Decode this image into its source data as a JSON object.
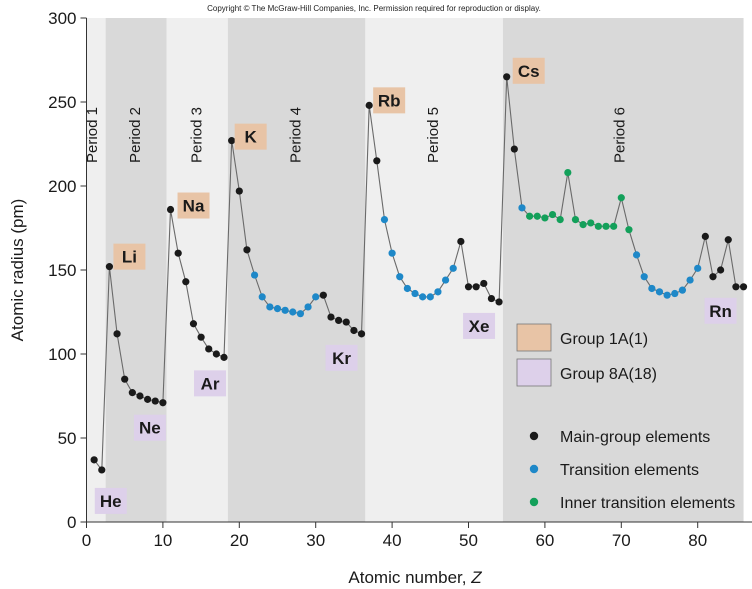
{
  "copyright": "Copyright © The McGraw-Hill Companies, Inc. Permission required for reproduction or display.",
  "colors": {
    "main_group": "#1a1a1a",
    "transition": "#1e88c8",
    "inner_transition": "#13a05a",
    "group_1a_box": "#e8c4a6",
    "group_8a_box": "#ddd0ea",
    "band_dark": "#d9d9d9",
    "band_light": "#efefef",
    "line": "#6a6a6a"
  },
  "chart_data": {
    "type": "line",
    "xlabel": "Atomic number, ",
    "xlabel_italic": "Z",
    "ylabel": "Atomic radius (pm)",
    "xlim": [
      0,
      86
    ],
    "ylim": [
      0,
      300
    ],
    "x_ticks": [
      0,
      10,
      20,
      30,
      40,
      50,
      60,
      70,
      80
    ],
    "y_ticks": [
      0,
      50,
      100,
      150,
      200,
      250,
      300
    ],
    "periods": [
      {
        "label": "Period 1",
        "z_range": [
          0,
          2.5
        ],
        "shade": "light"
      },
      {
        "label": "Period 2",
        "z_range": [
          2.5,
          10.5
        ],
        "shade": "dark"
      },
      {
        "label": "Period 3",
        "z_range": [
          10.5,
          18.5
        ],
        "shade": "light"
      },
      {
        "label": "Period 4",
        "z_range": [
          18.5,
          36.5
        ],
        "shade": "dark"
      },
      {
        "label": "Period 5",
        "z_range": [
          36.5,
          54.5
        ],
        "shade": "light"
      },
      {
        "label": "Period 6",
        "z_range": [
          54.5,
          86
        ],
        "shade": "dark"
      }
    ],
    "points": [
      [
        1,
        37,
        "m"
      ],
      [
        2,
        31,
        "m"
      ],
      [
        3,
        152,
        "m"
      ],
      [
        4,
        112,
        "m"
      ],
      [
        5,
        85,
        "m"
      ],
      [
        6,
        77,
        "m"
      ],
      [
        7,
        75,
        "m"
      ],
      [
        8,
        73,
        "m"
      ],
      [
        9,
        72,
        "m"
      ],
      [
        10,
        71,
        "m"
      ],
      [
        11,
        186,
        "m"
      ],
      [
        12,
        160,
        "m"
      ],
      [
        13,
        143,
        "m"
      ],
      [
        14,
        118,
        "m"
      ],
      [
        15,
        110,
        "m"
      ],
      [
        16,
        103,
        "m"
      ],
      [
        17,
        100,
        "m"
      ],
      [
        18,
        98,
        "m"
      ],
      [
        19,
        227,
        "m"
      ],
      [
        20,
        197,
        "m"
      ],
      [
        21,
        162,
        "m"
      ],
      [
        22,
        147,
        "t"
      ],
      [
        23,
        134,
        "t"
      ],
      [
        24,
        128,
        "t"
      ],
      [
        25,
        127,
        "t"
      ],
      [
        26,
        126,
        "t"
      ],
      [
        27,
        125,
        "t"
      ],
      [
        28,
        124,
        "t"
      ],
      [
        29,
        128,
        "t"
      ],
      [
        30,
        134,
        "t"
      ],
      [
        31,
        135,
        "m"
      ],
      [
        32,
        122,
        "m"
      ],
      [
        33,
        120,
        "m"
      ],
      [
        34,
        119,
        "m"
      ],
      [
        35,
        114,
        "m"
      ],
      [
        36,
        112,
        "m"
      ],
      [
        37,
        248,
        "m"
      ],
      [
        38,
        215,
        "m"
      ],
      [
        39,
        180,
        "t"
      ],
      [
        40,
        160,
        "t"
      ],
      [
        41,
        146,
        "t"
      ],
      [
        42,
        139,
        "t"
      ],
      [
        43,
        136,
        "t"
      ],
      [
        44,
        134,
        "t"
      ],
      [
        45,
        134,
        "t"
      ],
      [
        46,
        137,
        "t"
      ],
      [
        47,
        144,
        "t"
      ],
      [
        48,
        151,
        "t"
      ],
      [
        49,
        167,
        "m"
      ],
      [
        50,
        140,
        "m"
      ],
      [
        51,
        140,
        "m"
      ],
      [
        52,
        142,
        "m"
      ],
      [
        53,
        133,
        "m"
      ],
      [
        54,
        131,
        "m"
      ],
      [
        55,
        265,
        "m"
      ],
      [
        56,
        222,
        "m"
      ],
      [
        57,
        187,
        "t"
      ],
      [
        58,
        182,
        "i"
      ],
      [
        59,
        182,
        "i"
      ],
      [
        60,
        181,
        "i"
      ],
      [
        61,
        183,
        "i"
      ],
      [
        62,
        180,
        "i"
      ],
      [
        63,
        208,
        "i"
      ],
      [
        64,
        180,
        "i"
      ],
      [
        65,
        177,
        "i"
      ],
      [
        66,
        178,
        "i"
      ],
      [
        67,
        176,
        "i"
      ],
      [
        68,
        176,
        "i"
      ],
      [
        69,
        176,
        "i"
      ],
      [
        70,
        193,
        "i"
      ],
      [
        71,
        174,
        "i"
      ],
      [
        72,
        159,
        "t"
      ],
      [
        73,
        146,
        "t"
      ],
      [
        74,
        139,
        "t"
      ],
      [
        75,
        137,
        "t"
      ],
      [
        76,
        135,
        "t"
      ],
      [
        77,
        136,
        "t"
      ],
      [
        78,
        138,
        "t"
      ],
      [
        79,
        144,
        "t"
      ],
      [
        80,
        151,
        "t"
      ],
      [
        81,
        170,
        "m"
      ],
      [
        82,
        146,
        "m"
      ],
      [
        83,
        150,
        "m"
      ],
      [
        84,
        168,
        "m"
      ],
      [
        85,
        140,
        "m"
      ],
      [
        86,
        140,
        "m"
      ]
    ],
    "element_labels": [
      {
        "text": "He",
        "z": 2,
        "r": 31,
        "group": "8A"
      },
      {
        "text": "Li",
        "z": 3,
        "r": 152,
        "group": "1A"
      },
      {
        "text": "Ne",
        "z": 10,
        "r": 71,
        "group": "8A"
      },
      {
        "text": "Na",
        "z": 11,
        "r": 186,
        "group": "1A"
      },
      {
        "text": "Ar",
        "z": 18,
        "r": 98,
        "group": "8A"
      },
      {
        "text": "K",
        "z": 19,
        "r": 227,
        "group": "1A"
      },
      {
        "text": "Kr",
        "z": 36,
        "r": 112,
        "group": "8A"
      },
      {
        "text": "Rb",
        "z": 37,
        "r": 248,
        "group": "1A"
      },
      {
        "text": "Xe",
        "z": 54,
        "r": 131,
        "group": "8A"
      },
      {
        "text": "Cs",
        "z": 55,
        "r": 265,
        "group": "1A"
      },
      {
        "text": "Rn",
        "z": 86,
        "r": 140,
        "group": "8A"
      }
    ],
    "legend": {
      "placement": "bottom-right",
      "items": [
        {
          "label": "Group 1A(1)",
          "kind": "box",
          "color_key": "group_1a_box"
        },
        {
          "label": "Group 8A(18)",
          "kind": "box",
          "color_key": "group_8a_box"
        },
        {
          "label": "Main-group elements",
          "kind": "dot",
          "color_key": "main_group"
        },
        {
          "label": "Transition elements",
          "kind": "dot",
          "color_key": "transition"
        },
        {
          "label": "Inner transition elements",
          "kind": "dot",
          "color_key": "inner_transition"
        }
      ]
    }
  }
}
